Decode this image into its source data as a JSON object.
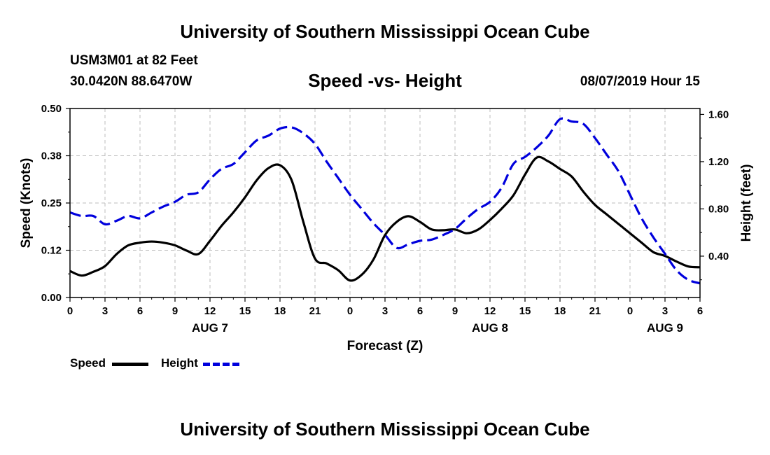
{
  "header": {
    "title": "University of Southern Mississippi Ocean Cube",
    "station": "USM3M01 at 82 Feet",
    "coords": "30.0420N 88.6470W",
    "subtitle": "Speed -vs- Height",
    "datetime": "08/07/2019 Hour 15"
  },
  "footer": {
    "title": "University of Southern Mississippi Ocean Cube"
  },
  "legend": {
    "speed_label": "Speed",
    "height_label": "Height"
  },
  "chart_data": {
    "type": "line",
    "title": "Speed -vs- Height",
    "xlabel": "Forecast (Z)",
    "ylabel_left": "Speed (Knots)",
    "ylabel_right": "Height (feet)",
    "x_unit": "hours since 2019-08-07 00Z",
    "xlim": [
      0,
      54
    ],
    "ylim_left": [
      0,
      0.5
    ],
    "ylim_right": [
      0.05,
      1.65
    ],
    "grid": true,
    "x_ticks": [
      {
        "x": 0,
        "label": "0"
      },
      {
        "x": 3,
        "label": "3"
      },
      {
        "x": 6,
        "label": "6"
      },
      {
        "x": 9,
        "label": "9"
      },
      {
        "x": 12,
        "label": "12"
      },
      {
        "x": 15,
        "label": "15"
      },
      {
        "x": 18,
        "label": "18"
      },
      {
        "x": 21,
        "label": "21"
      },
      {
        "x": 24,
        "label": "0"
      },
      {
        "x": 27,
        "label": "3"
      },
      {
        "x": 30,
        "label": "6"
      },
      {
        "x": 33,
        "label": "9"
      },
      {
        "x": 36,
        "label": "12"
      },
      {
        "x": 39,
        "label": "15"
      },
      {
        "x": 42,
        "label": "18"
      },
      {
        "x": 45,
        "label": "21"
      },
      {
        "x": 48,
        "label": "0"
      },
      {
        "x": 51,
        "label": "3"
      },
      {
        "x": 54,
        "label": "6"
      }
    ],
    "day_labels": [
      {
        "x": 12,
        "label": "AUG 7"
      },
      {
        "x": 36,
        "label": "AUG 8"
      },
      {
        "x": 51,
        "label": "AUG 9"
      }
    ],
    "y_ticks_left": [
      {
        "value": 0.0,
        "label": "0.00"
      },
      {
        "value": 0.125,
        "label": "0.12"
      },
      {
        "value": 0.25,
        "label": "0.25"
      },
      {
        "value": 0.375,
        "label": "0.38"
      },
      {
        "value": 0.5,
        "label": "0.50"
      }
    ],
    "y_ticks_right": [
      {
        "value": 0.4,
        "label": "0.40"
      },
      {
        "value": 0.8,
        "label": "0.80"
      },
      {
        "value": 1.2,
        "label": "1.20"
      },
      {
        "value": 1.6,
        "label": "1.60"
      }
    ],
    "series": [
      {
        "name": "Speed",
        "axis": "left",
        "color": "#000000",
        "dash": "solid",
        "x": [
          0,
          1,
          2,
          3,
          4,
          5,
          6,
          7,
          8,
          9,
          10,
          11,
          12,
          13,
          14,
          15,
          16,
          17,
          18,
          19,
          20,
          21,
          22,
          23,
          24,
          25,
          26,
          27,
          28,
          29,
          30,
          31,
          32,
          33,
          34,
          35,
          36,
          37,
          38,
          39,
          40,
          41,
          42,
          43,
          44,
          45,
          46,
          47,
          48,
          49,
          50,
          51,
          52,
          53,
          54
        ],
        "values": [
          0.07,
          0.058,
          0.068,
          0.083,
          0.115,
          0.138,
          0.145,
          0.148,
          0.145,
          0.138,
          0.124,
          0.115,
          0.15,
          0.19,
          0.225,
          0.265,
          0.31,
          0.342,
          0.35,
          0.31,
          0.2,
          0.103,
          0.09,
          0.072,
          0.045,
          0.06,
          0.1,
          0.165,
          0.2,
          0.215,
          0.2,
          0.18,
          0.178,
          0.18,
          0.17,
          0.18,
          0.205,
          0.235,
          0.27,
          0.325,
          0.37,
          0.36,
          0.34,
          0.32,
          0.28,
          0.245,
          0.22,
          0.195,
          0.17,
          0.145,
          0.12,
          0.11,
          0.095,
          0.082,
          0.08
        ]
      },
      {
        "name": "Height",
        "axis": "right",
        "color": "#0000dd",
        "dash": "dashed",
        "x": [
          0,
          1,
          2,
          3,
          4,
          5,
          6,
          7,
          8,
          9,
          10,
          11,
          12,
          13,
          14,
          15,
          16,
          17,
          18,
          19,
          20,
          21,
          22,
          23,
          24,
          25,
          26,
          27,
          28,
          29,
          30,
          31,
          32,
          33,
          34,
          35,
          36,
          37,
          38,
          39,
          40,
          41,
          42,
          43,
          44,
          45,
          46,
          47,
          48,
          49,
          50,
          51,
          52,
          53,
          54
        ],
        "values": [
          0.77,
          0.74,
          0.74,
          0.67,
          0.7,
          0.74,
          0.72,
          0.77,
          0.82,
          0.86,
          0.92,
          0.94,
          1.05,
          1.14,
          1.18,
          1.28,
          1.38,
          1.42,
          1.48,
          1.49,
          1.44,
          1.35,
          1.2,
          1.06,
          0.92,
          0.8,
          0.68,
          0.58,
          0.47,
          0.5,
          0.53,
          0.54,
          0.58,
          0.63,
          0.72,
          0.8,
          0.86,
          0.98,
          1.18,
          1.24,
          1.32,
          1.42,
          1.56,
          1.54,
          1.52,
          1.4,
          1.26,
          1.12,
          0.92,
          0.72,
          0.56,
          0.42,
          0.28,
          0.2,
          0.17
        ]
      }
    ]
  }
}
